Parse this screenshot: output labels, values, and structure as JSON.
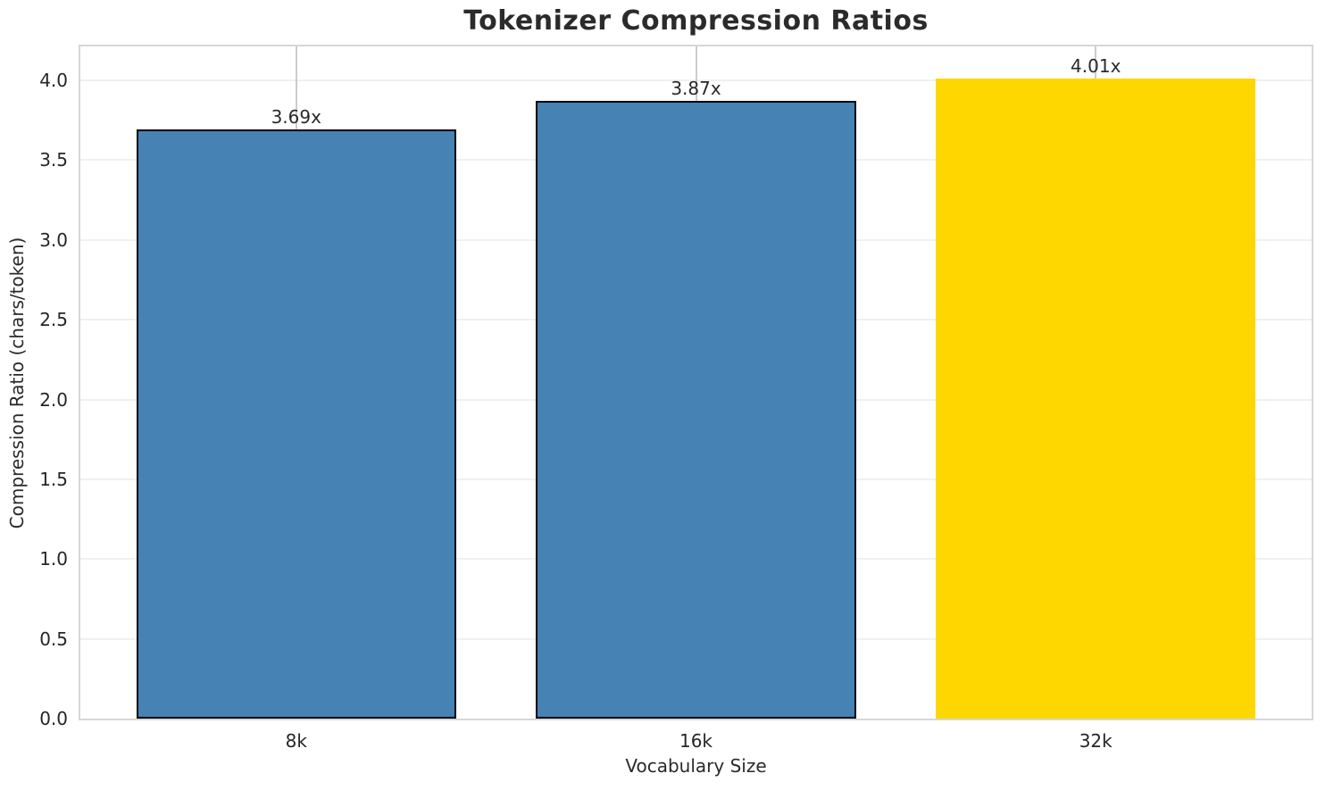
{
  "chart_data": {
    "type": "bar",
    "title": "Tokenizer Compression Ratios",
    "xlabel": "Vocabulary Size",
    "ylabel": "Compression Ratio (chars/token)",
    "categories": [
      "8k",
      "16k",
      "32k"
    ],
    "values": [
      3.69,
      3.87,
      4.01
    ],
    "value_labels": [
      "3.69x",
      "3.87x",
      "4.01x"
    ],
    "bar_colors": [
      "#4682B4",
      "#4682B4",
      "#FFD700"
    ],
    "bar_edge_colors": [
      "#000000",
      "#000000",
      "none"
    ],
    "highlight_index": 2,
    "y_ticks": [
      "0.0",
      "0.5",
      "1.0",
      "1.5",
      "2.0",
      "2.5",
      "3.0",
      "3.5",
      "4.0"
    ],
    "ylim": [
      0,
      4.21
    ],
    "grid": "both",
    "legend": "none",
    "colors": {
      "bar_default": "#4682B4",
      "bar_highlight": "#FFD700",
      "grid_horizontal": "#f0f0f0",
      "grid_vertical": "#cccccc",
      "spine": "#d6d6d6",
      "text": "#262626"
    }
  }
}
